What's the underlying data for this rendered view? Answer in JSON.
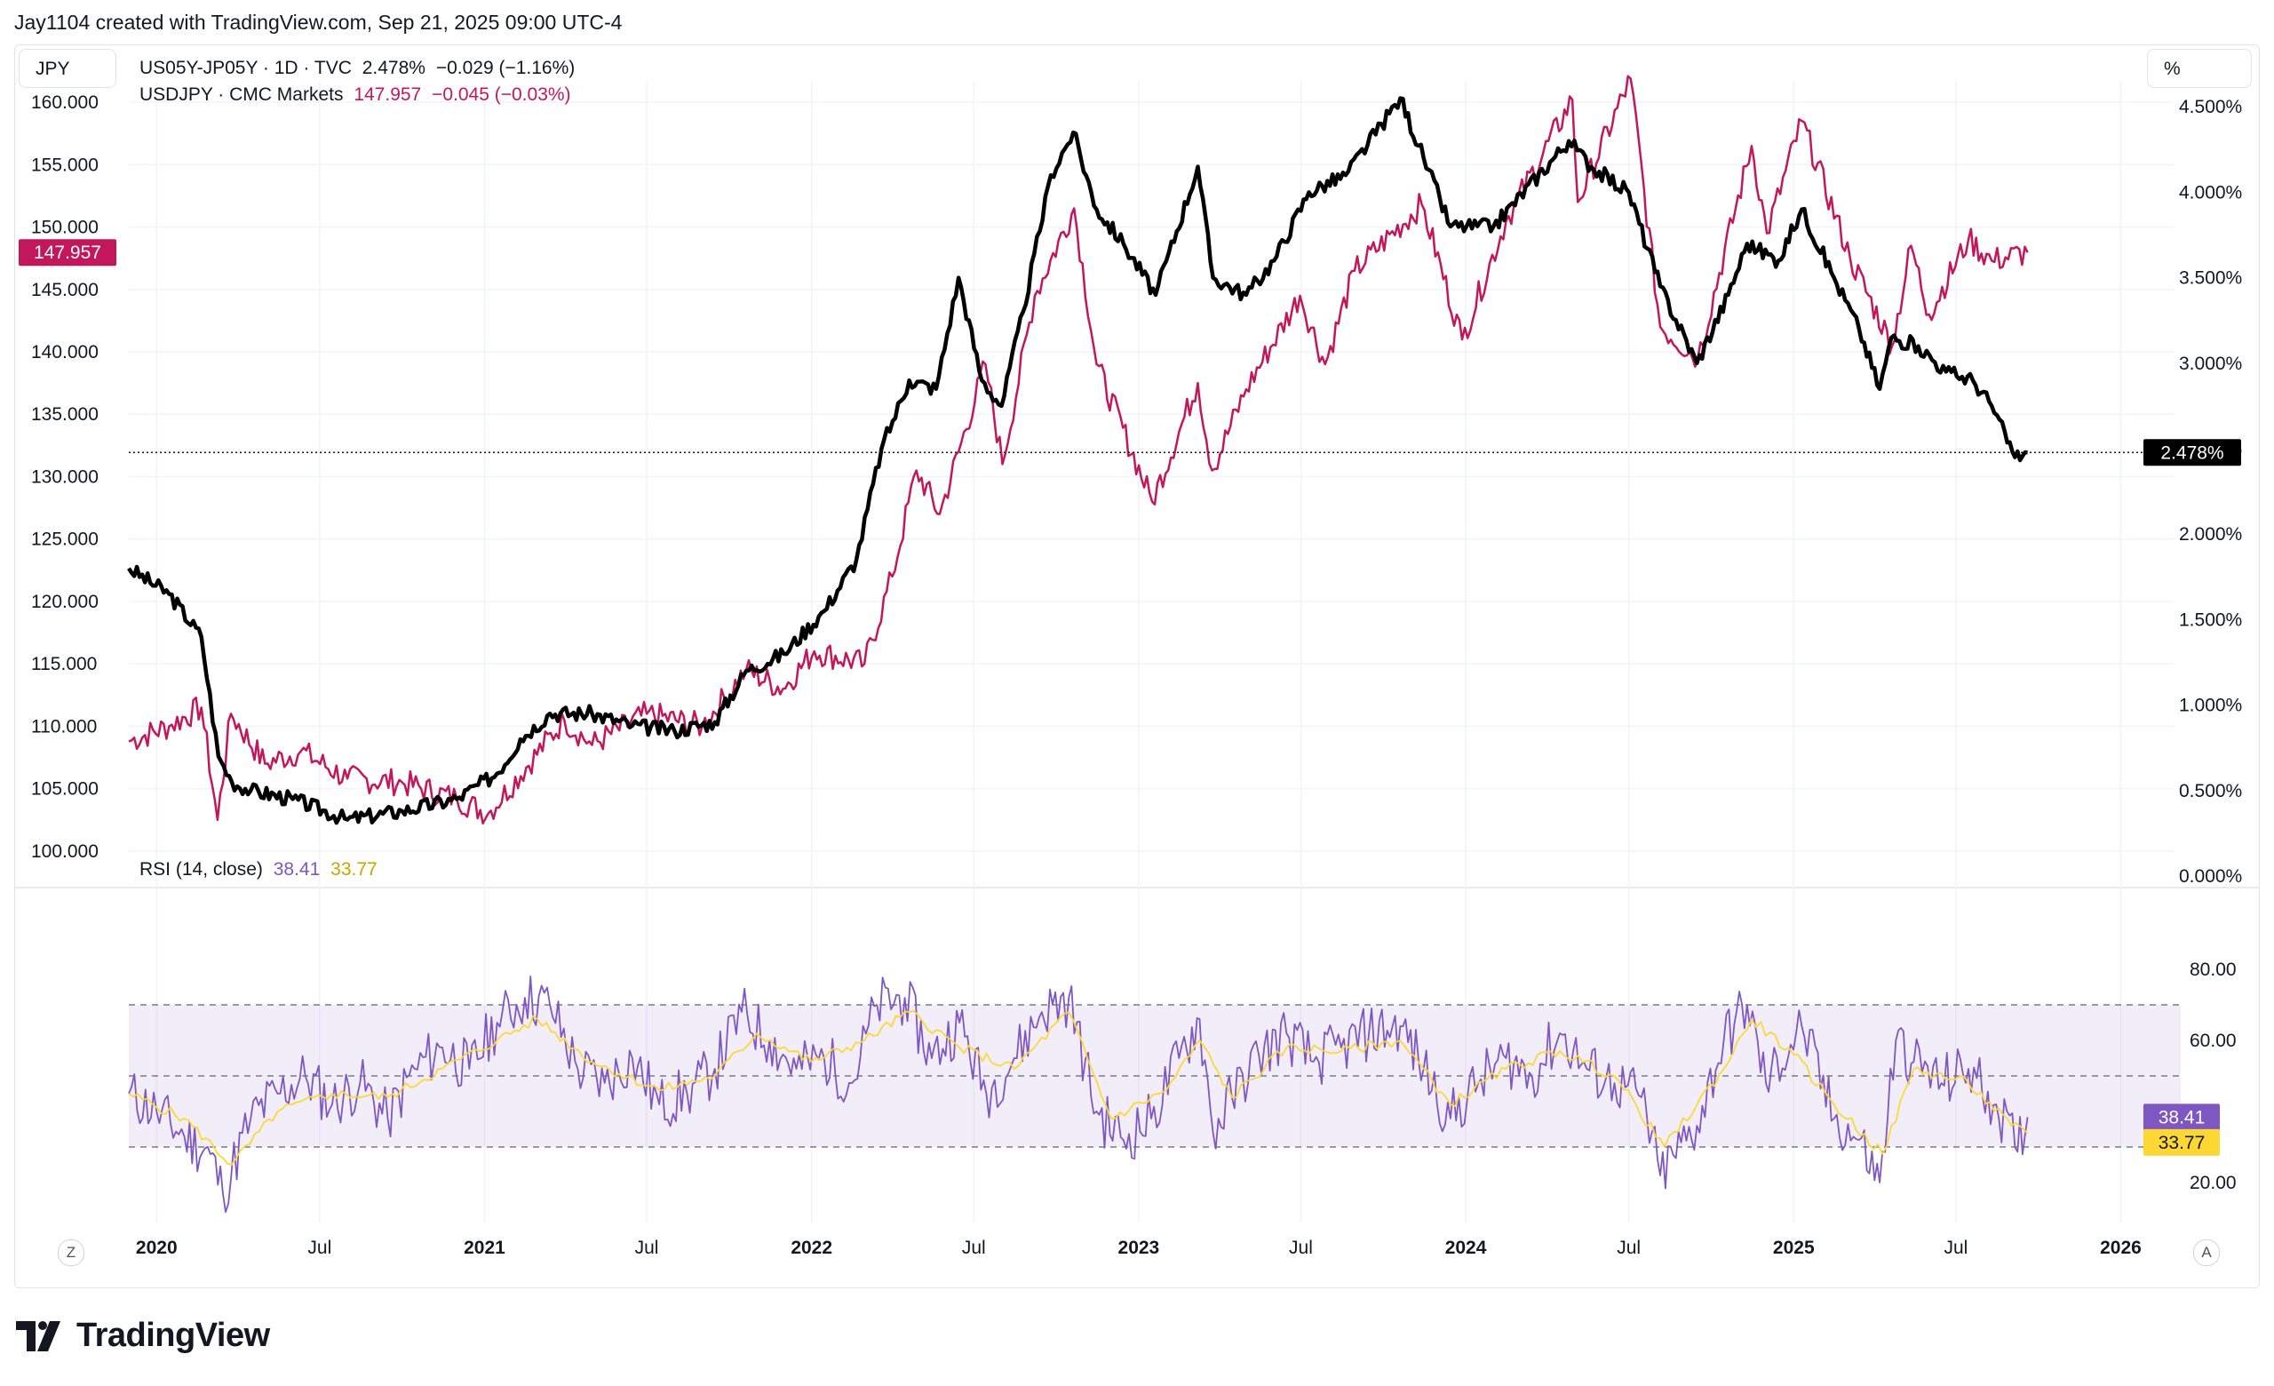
{
  "header": {
    "attribution": "Jay1104 created with TradingView.com, Sep 21, 2025 09:00 UTC-4"
  },
  "left_axis_button": "JPY",
  "right_axis_button": "%",
  "legend": {
    "series1": {
      "symbol": "US05Y-JP05Y · 1D · TVC",
      "value": "2.478%",
      "change": "−0.029 (−1.16%)",
      "color": "#000000"
    },
    "series2": {
      "symbol": "USDJPY · CMC Markets",
      "value": "147.957",
      "change": "−0.045 (−0.03%)",
      "color": "#c2185b"
    }
  },
  "rsi_legend": {
    "label": "RSI (14, close)",
    "value": "38.41",
    "ma_value": "33.77",
    "color": "#7e57c2",
    "ma_color": "#fdd835"
  },
  "price_badges": {
    "usdjpy": "147.957",
    "spread": "2.478%",
    "rsi": "38.41",
    "rsi_ma": "33.77"
  },
  "scale_buttons": {
    "zoom": "Z",
    "auto": "A"
  },
  "brand": "TradingView",
  "chart_data": [
    {
      "type": "line",
      "title": "US05Y-JP05Y vs USDJPY",
      "x_range": [
        "2019-12-01",
        "2026-03-01"
      ],
      "left_axis": {
        "ticks": [
          "100.000",
          "105.000",
          "110.000",
          "115.000",
          "120.000",
          "125.000",
          "130.000",
          "135.000",
          "140.000",
          "145.000",
          "150.000",
          "155.000",
          "160.000"
        ],
        "ylim": [
          98,
          161
        ]
      },
      "right_axis": {
        "ticks": [
          "0.000%",
          "0.500%",
          "1.000%",
          "1.500%",
          "2.000%",
          "2.500%",
          "3.000%",
          "3.500%",
          "4.000%",
          "4.500%"
        ],
        "ylim": [
          0,
          4.6
        ]
      },
      "x_ticks": [
        "2020",
        "Jul",
        "2021",
        "Jul",
        "2022",
        "Jul",
        "2023",
        "Jul",
        "2024",
        "Jul",
        "2025",
        "Jul",
        "2026"
      ],
      "series": [
        {
          "name": "US05Y-JP05Y",
          "axis": "right",
          "color": "#000000",
          "points": [
            [
              "2019-12-01",
              1.8
            ],
            [
              "2020-01-15",
              1.65
            ],
            [
              "2020-02-20",
              1.4
            ],
            [
              "2020-03-10",
              0.7
            ],
            [
              "2020-03-25",
              0.55
            ],
            [
              "2020-04-15",
              0.5
            ],
            [
              "2020-06-01",
              0.45
            ],
            [
              "2020-08-01",
              0.33
            ],
            [
              "2020-10-01",
              0.38
            ],
            [
              "2020-12-01",
              0.45
            ],
            [
              "2021-01-15",
              0.6
            ],
            [
              "2021-02-10",
              0.8
            ],
            [
              "2021-03-15",
              0.95
            ],
            [
              "2021-05-01",
              0.95
            ],
            [
              "2021-06-15",
              0.88
            ],
            [
              "2021-08-01",
              0.85
            ],
            [
              "2021-09-15",
              0.9
            ],
            [
              "2021-10-20",
              1.2
            ],
            [
              "2021-12-01",
              1.3
            ],
            [
              "2022-01-15",
              1.55
            ],
            [
              "2022-02-20",
              1.85
            ],
            [
              "2022-03-20",
              2.5
            ],
            [
              "2022-04-20",
              2.9
            ],
            [
              "2022-05-20",
              2.85
            ],
            [
              "2022-06-14",
              3.5
            ],
            [
              "2022-07-10",
              2.9
            ],
            [
              "2022-08-01",
              2.75
            ],
            [
              "2022-08-25",
              3.3
            ],
            [
              "2022-09-25",
              4.1
            ],
            [
              "2022-10-20",
              4.35
            ],
            [
              "2022-11-15",
              3.9
            ],
            [
              "2022-12-15",
              3.7
            ],
            [
              "2023-01-20",
              3.4
            ],
            [
              "2023-03-08",
              4.15
            ],
            [
              "2023-03-25",
              3.5
            ],
            [
              "2023-05-01",
              3.4
            ],
            [
              "2023-06-01",
              3.6
            ],
            [
              "2023-07-10",
              4.0
            ],
            [
              "2023-08-20",
              4.1
            ],
            [
              "2023-10-20",
              4.55
            ],
            [
              "2023-11-15",
              4.2
            ],
            [
              "2023-12-15",
              3.8
            ],
            [
              "2024-02-01",
              3.8
            ],
            [
              "2024-04-25",
              4.3
            ],
            [
              "2024-05-20",
              4.15
            ],
            [
              "2024-07-01",
              4.0
            ],
            [
              "2024-08-05",
              3.45
            ],
            [
              "2024-09-15",
              3.0
            ],
            [
              "2024-10-20",
              3.4
            ],
            [
              "2024-11-10",
              3.7
            ],
            [
              "2024-12-15",
              3.6
            ],
            [
              "2025-01-10",
              3.9
            ],
            [
              "2025-02-15",
              3.5
            ],
            [
              "2025-03-15",
              3.2
            ],
            [
              "2025-04-07",
              2.85
            ],
            [
              "2025-04-20",
              3.15
            ],
            [
              "2025-05-20",
              3.1
            ],
            [
              "2025-06-20",
              2.95
            ],
            [
              "2025-07-20",
              2.9
            ],
            [
              "2025-08-10",
              2.75
            ],
            [
              "2025-09-05",
              2.45
            ],
            [
              "2025-09-19",
              2.478
            ]
          ]
        },
        {
          "name": "USDJPY",
          "axis": "left",
          "color": "#c2185b",
          "points": [
            [
              "2019-12-01",
              108.8
            ],
            [
              "2020-01-15",
              110
            ],
            [
              "2020-02-20",
              111.5
            ],
            [
              "2020-03-09",
              102.5
            ],
            [
              "2020-03-24",
              111
            ],
            [
              "2020-05-01",
              107
            ],
            [
              "2020-06-10",
              108
            ],
            [
              "2020-08-01",
              105.8
            ],
            [
              "2020-10-01",
              105.5
            ],
            [
              "2020-12-01",
              104.2
            ],
            [
              "2021-01-05",
              103
            ],
            [
              "2021-03-31",
              110.5
            ],
            [
              "2021-05-01",
              108.5
            ],
            [
              "2021-07-01",
              111
            ],
            [
              "2021-09-01",
              110
            ],
            [
              "2021-10-20",
              114.5
            ],
            [
              "2021-11-30",
              113
            ],
            [
              "2022-01-04",
              116
            ],
            [
              "2022-03-01",
              115
            ],
            [
              "2022-04-01",
              122
            ],
            [
              "2022-04-28",
              130.5
            ],
            [
              "2022-05-24",
              127
            ],
            [
              "2022-07-14",
              139
            ],
            [
              "2022-08-02",
              131
            ],
            [
              "2022-09-07",
              144.5
            ],
            [
              "2022-10-21",
              151.5
            ],
            [
              "2022-11-15",
              139
            ],
            [
              "2023-01-16",
              128
            ],
            [
              "2023-03-08",
              137.5
            ],
            [
              "2023-03-24",
              130.5
            ],
            [
              "2023-05-01",
              137
            ],
            [
              "2023-06-30",
              144.5
            ],
            [
              "2023-07-28",
              139
            ],
            [
              "2023-08-30",
              146.5
            ],
            [
              "2023-11-13",
              151.8
            ],
            [
              "2023-12-28",
              141
            ],
            [
              "2024-02-15",
              150.5
            ],
            [
              "2024-04-29",
              160.2
            ],
            [
              "2024-05-05",
              152
            ],
            [
              "2024-07-03",
              161.9
            ],
            [
              "2024-08-05",
              142
            ],
            [
              "2024-09-16",
              139.5
            ],
            [
              "2024-11-15",
              156.5
            ],
            [
              "2024-12-02",
              149.5
            ],
            [
              "2025-01-10",
              158.5
            ],
            [
              "2025-03-05",
              147.5
            ],
            [
              "2025-04-21",
              140.5
            ],
            [
              "2025-05-12",
              148.5
            ],
            [
              "2025-06-01",
              143
            ],
            [
              "2025-07-15",
              149
            ],
            [
              "2025-08-10",
              147.3
            ],
            [
              "2025-09-19",
              147.957
            ]
          ]
        }
      ]
    },
    {
      "type": "line",
      "title": "RSI (14, close)",
      "ylim": [
        10,
        90
      ],
      "y_ticks": [
        "20.00",
        "60.00",
        "80.00"
      ],
      "bands": {
        "upper": 70,
        "middle": 50,
        "lower": 30
      },
      "series": [
        {
          "name": "RSI",
          "color": "#7e57c2",
          "points": [
            [
              "2019-12-01",
              45
            ],
            [
              "2020-01-01",
              40
            ],
            [
              "2020-02-01",
              33
            ],
            [
              "2020-03-01",
              28
            ],
            [
              "2020-03-15",
              17
            ],
            [
              "2020-04-15",
              38
            ],
            [
              "2020-05-15",
              45
            ],
            [
              "2020-06-15",
              50
            ],
            [
              "2020-07-15",
              42
            ],
            [
              "2020-08-15",
              48
            ],
            [
              "2020-09-15",
              38
            ],
            [
              "2020-10-15",
              52
            ],
            [
              "2020-11-15",
              58
            ],
            [
              "2020-12-15",
              52
            ],
            [
              "2021-01-15",
              65
            ],
            [
              "2021-02-15",
              72
            ],
            [
              "2021-03-15",
              70
            ],
            [
              "2021-04-15",
              52
            ],
            [
              "2021-05-15",
              48
            ],
            [
              "2021-06-15",
              55
            ],
            [
              "2021-07-15",
              42
            ],
            [
              "2021-08-15",
              45
            ],
            [
              "2021-09-15",
              52
            ],
            [
              "2021-10-15",
              68
            ],
            [
              "2021-11-15",
              60
            ],
            [
              "2021-12-15",
              52
            ],
            [
              "2022-01-15",
              55
            ],
            [
              "2022-02-15",
              48
            ],
            [
              "2022-03-15",
              70
            ],
            [
              "2022-04-15",
              72
            ],
            [
              "2022-05-15",
              55
            ],
            [
              "2022-06-15",
              65
            ],
            [
              "2022-07-15",
              45
            ],
            [
              "2022-08-15",
              55
            ],
            [
              "2022-09-15",
              68
            ],
            [
              "2022-10-15",
              72
            ],
            [
              "2022-11-15",
              40
            ],
            [
              "2022-12-15",
              32
            ],
            [
              "2023-01-15",
              38
            ],
            [
              "2023-02-15",
              55
            ],
            [
              "2023-03-10",
              66
            ],
            [
              "2023-03-25",
              34
            ],
            [
              "2023-04-15",
              44
            ],
            [
              "2023-05-15",
              56
            ],
            [
              "2023-06-15",
              62
            ],
            [
              "2023-07-15",
              54
            ],
            [
              "2023-08-15",
              58
            ],
            [
              "2023-09-15",
              62
            ],
            [
              "2023-10-20",
              64
            ],
            [
              "2023-11-15",
              52
            ],
            [
              "2023-12-15",
              38
            ],
            [
              "2024-01-15",
              48
            ],
            [
              "2024-02-15",
              55
            ],
            [
              "2024-03-15",
              50
            ],
            [
              "2024-04-15",
              62
            ],
            [
              "2024-05-15",
              52
            ],
            [
              "2024-06-15",
              48
            ],
            [
              "2024-07-15",
              44
            ],
            [
              "2024-08-05",
              22
            ],
            [
              "2024-09-15",
              36
            ],
            [
              "2024-10-15",
              60
            ],
            [
              "2024-11-10",
              70
            ],
            [
              "2024-12-01",
              48
            ],
            [
              "2025-01-10",
              64
            ],
            [
              "2025-02-15",
              38
            ],
            [
              "2025-03-15",
              32
            ],
            [
              "2025-04-07",
              20
            ],
            [
              "2025-04-25",
              60
            ],
            [
              "2025-05-15",
              54
            ],
            [
              "2025-06-15",
              48
            ],
            [
              "2025-07-15",
              52
            ],
            [
              "2025-08-15",
              42
            ],
            [
              "2025-09-05",
              30
            ],
            [
              "2025-09-19",
              38.41
            ]
          ]
        },
        {
          "name": "RSI MA",
          "color": "#fdd835",
          "points": [
            [
              "2019-12-01",
              45
            ],
            [
              "2020-02-01",
              38
            ],
            [
              "2020-03-25",
              25
            ],
            [
              "2020-05-15",
              40
            ],
            [
              "2020-07-15",
              45
            ],
            [
              "2020-09-15",
              44
            ],
            [
              "2020-11-15",
              52
            ],
            [
              "2021-01-15",
              60
            ],
            [
              "2021-03-01",
              66
            ],
            [
              "2021-05-01",
              54
            ],
            [
              "2021-07-15",
              46
            ],
            [
              "2021-09-15",
              50
            ],
            [
              "2021-11-01",
              62
            ],
            [
              "2022-01-01",
              54
            ],
            [
              "2022-03-01",
              60
            ],
            [
              "2022-04-20",
              68
            ],
            [
              "2022-06-15",
              58
            ],
            [
              "2022-08-15",
              52
            ],
            [
              "2022-10-15",
              68
            ],
            [
              "2022-12-01",
              38
            ],
            [
              "2023-02-01",
              46
            ],
            [
              "2023-03-10",
              60
            ],
            [
              "2023-04-15",
              44
            ],
            [
              "2023-06-15",
              58
            ],
            [
              "2023-08-15",
              57
            ],
            [
              "2023-10-20",
              60
            ],
            [
              "2023-12-15",
              42
            ],
            [
              "2024-02-15",
              52
            ],
            [
              "2024-04-15",
              57
            ],
            [
              "2024-06-15",
              50
            ],
            [
              "2024-08-10",
              30
            ],
            [
              "2024-10-15",
              52
            ],
            [
              "2024-11-15",
              66
            ],
            [
              "2025-01-01",
              56
            ],
            [
              "2025-02-15",
              42
            ],
            [
              "2025-04-10",
              28
            ],
            [
              "2025-05-15",
              52
            ],
            [
              "2025-07-15",
              48
            ],
            [
              "2025-09-01",
              36
            ],
            [
              "2025-09-19",
              33.77
            ]
          ]
        }
      ]
    }
  ]
}
